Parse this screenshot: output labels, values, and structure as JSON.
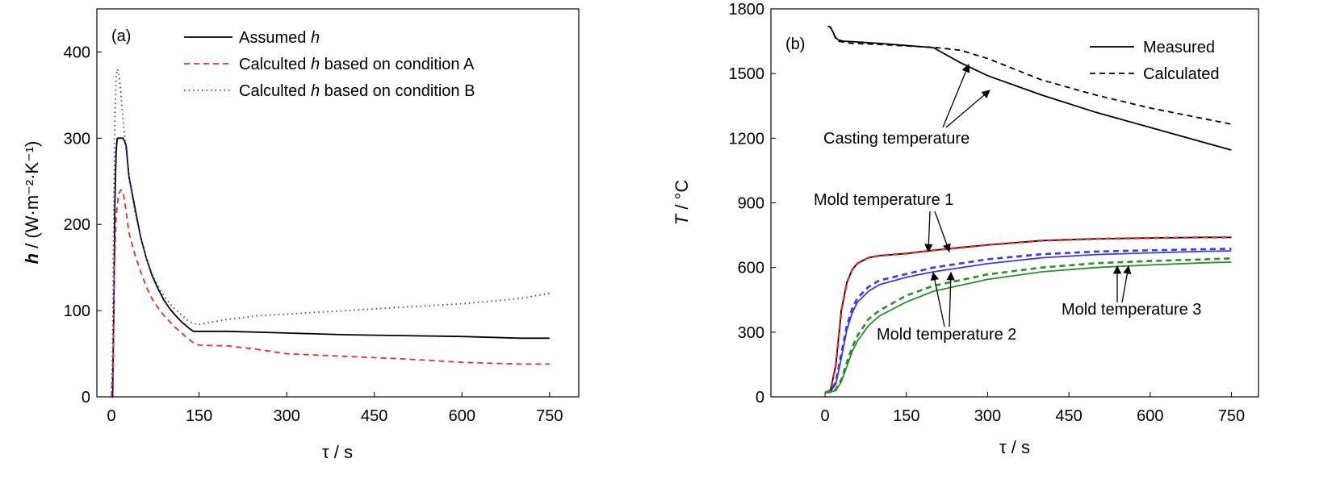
{
  "chart_data": [
    {
      "type": "line",
      "panel_label": "(a)",
      "xlabel": "τ / s",
      "ylabel_symbol": "h",
      "ylabel_unit": " / (W·m⁻²·K⁻¹)",
      "xlim": [
        -25,
        800
      ],
      "ylim": [
        0,
        450
      ],
      "xticks": [
        0,
        150,
        300,
        450,
        600,
        750
      ],
      "yticks": [
        0,
        100,
        200,
        300,
        400
      ],
      "legend_position": "top-right",
      "series": [
        {
          "legend_prefix": "Assumed ",
          "legend_symbol": "h",
          "legend_suffix": "",
          "color": "#000000",
          "style": "solid",
          "x": [
            0,
            2,
            4,
            6,
            8,
            10,
            12,
            20,
            25,
            30,
            40,
            50,
            60,
            70,
            80,
            90,
            100,
            110,
            120,
            130,
            140,
            150,
            200,
            300,
            400,
            500,
            600,
            700,
            750
          ],
          "y": [
            0,
            0,
            100,
            230,
            285,
            300,
            300,
            300,
            292,
            255,
            220,
            185,
            160,
            140,
            125,
            112,
            102,
            94,
            87,
            81,
            76,
            76,
            76,
            74,
            72,
            71,
            70,
            68,
            68
          ]
        },
        {
          "legend_prefix": "Calculted ",
          "legend_symbol": "h",
          "legend_suffix": " based on condition A",
          "color": "#e03030",
          "style": "dashed",
          "x": [
            0,
            3,
            5,
            8,
            12,
            16,
            20,
            25,
            30,
            40,
            50,
            60,
            70,
            80,
            90,
            100,
            110,
            120,
            130,
            140,
            150,
            200,
            250,
            300,
            400,
            500,
            600,
            700,
            750
          ],
          "y": [
            0,
            40,
            150,
            210,
            235,
            240,
            238,
            215,
            190,
            165,
            145,
            127,
            113,
            103,
            94,
            87,
            80,
            74,
            68,
            63,
            60,
            59,
            55,
            50,
            47,
            44,
            40,
            38,
            38
          ]
        },
        {
          "legend_prefix": "Calculted ",
          "legend_symbol": "h",
          "legend_suffix": " based on condition B",
          "color": "#3a3adf",
          "style": "dotted",
          "x": [
            0,
            2,
            4,
            6,
            8,
            10,
            12,
            15,
            20,
            25,
            30,
            40,
            50,
            60,
            70,
            80,
            90,
            100,
            110,
            120,
            130,
            140,
            150,
            200,
            250,
            300,
            400,
            500,
            600,
            700,
            750
          ],
          "y": [
            0,
            60,
            220,
            330,
            370,
            380,
            378,
            360,
            320,
            285,
            255,
            215,
            185,
            160,
            142,
            128,
            117,
            108,
            101,
            95,
            89,
            85,
            84,
            90,
            94,
            96,
            100,
            104,
            108,
            114,
            120
          ]
        }
      ]
    },
    {
      "type": "line",
      "panel_label": "(b)",
      "xlabel": "τ / s",
      "ylabel_symbol": "T",
      "ylabel_unit": " / °C",
      "xlim": [
        -100,
        800
      ],
      "ylim": [
        0,
        1800
      ],
      "xticks": [
        0,
        150,
        300,
        450,
        600,
        750
      ],
      "yticks": [
        0,
        300,
        600,
        900,
        1200,
        1500,
        1800
      ],
      "legend_position": "top-right",
      "legend": [
        {
          "label": "Measured",
          "style": "solid"
        },
        {
          "label": "Calculated",
          "style": "dashed"
        }
      ],
      "annotations": [
        "Casting temperature",
        "Mold temperature 1",
        "Mold temperature 2",
        "Mold temperature 3"
      ],
      "series": [
        {
          "group": "Casting temperature",
          "kind": "Measured",
          "color": "#000000",
          "style": "solid",
          "x": [
            5,
            10,
            15,
            20,
            25,
            35,
            50,
            100,
            150,
            200,
            250,
            300,
            400,
            500,
            600,
            700,
            750
          ],
          "y": [
            1720,
            1715,
            1690,
            1665,
            1655,
            1650,
            1648,
            1640,
            1630,
            1620,
            1550,
            1490,
            1400,
            1320,
            1250,
            1180,
            1145
          ]
        },
        {
          "group": "Casting temperature",
          "kind": "Calculated",
          "color": "#000000",
          "style": "dashed",
          "x": [
            5,
            10,
            15,
            20,
            25,
            35,
            50,
            100,
            150,
            200,
            250,
            300,
            400,
            500,
            600,
            700,
            750
          ],
          "y": [
            1720,
            1715,
            1690,
            1660,
            1650,
            1645,
            1640,
            1635,
            1628,
            1622,
            1608,
            1570,
            1470,
            1400,
            1340,
            1290,
            1265
          ]
        },
        {
          "group": "Mold temperature 1",
          "kind": "Measured",
          "color": "#000000",
          "style": "solid",
          "x": [
            0,
            10,
            20,
            30,
            40,
            50,
            60,
            80,
            100,
            150,
            200,
            300,
            400,
            500,
            600,
            700,
            750
          ],
          "y": [
            20,
            30,
            150,
            400,
            530,
            590,
            620,
            645,
            655,
            665,
            680,
            705,
            725,
            733,
            737,
            740,
            740
          ]
        },
        {
          "group": "Mold temperature 1",
          "kind": "Calculated",
          "color": "#e03030",
          "style": "dashed",
          "x": [
            0,
            10,
            20,
            30,
            40,
            50,
            60,
            80,
            100,
            150,
            200,
            300,
            400,
            500,
            600,
            700,
            750
          ],
          "y": [
            20,
            30,
            150,
            400,
            530,
            590,
            620,
            645,
            655,
            665,
            680,
            705,
            725,
            733,
            737,
            740,
            740
          ]
        },
        {
          "group": "Mold temperature 2",
          "kind": "Measured",
          "color": "#3a3adf",
          "style": "solid",
          "x": [
            0,
            10,
            20,
            30,
            40,
            50,
            60,
            80,
            100,
            150,
            200,
            300,
            400,
            500,
            600,
            700,
            750
          ],
          "y": [
            20,
            25,
            60,
            180,
            310,
            390,
            440,
            490,
            520,
            555,
            580,
            618,
            645,
            660,
            668,
            675,
            677
          ]
        },
        {
          "group": "Mold temperature 2",
          "kind": "Calculated",
          "color": "#3a3adf",
          "style": "dashed",
          "x": [
            0,
            10,
            20,
            30,
            40,
            50,
            60,
            80,
            100,
            150,
            200,
            300,
            400,
            500,
            600,
            700,
            750
          ],
          "y": [
            20,
            25,
            70,
            200,
            330,
            410,
            460,
            510,
            540,
            570,
            600,
            638,
            662,
            674,
            680,
            685,
            687
          ]
        },
        {
          "group": "Mold temperature 3",
          "kind": "Measured",
          "color": "#2e8b2e",
          "style": "solid",
          "x": [
            0,
            10,
            20,
            30,
            40,
            50,
            60,
            80,
            100,
            150,
            200,
            300,
            400,
            500,
            600,
            700,
            750
          ],
          "y": [
            20,
            22,
            30,
            70,
            140,
            210,
            260,
            330,
            375,
            440,
            490,
            545,
            580,
            600,
            612,
            622,
            625
          ]
        },
        {
          "group": "Mold temperature 3",
          "kind": "Calculated",
          "color": "#2e8b2e",
          "style": "dashed",
          "x": [
            0,
            10,
            20,
            30,
            40,
            50,
            60,
            80,
            100,
            150,
            200,
            300,
            400,
            500,
            600,
            700,
            750
          ],
          "y": [
            20,
            22,
            35,
            80,
            160,
            230,
            285,
            360,
            400,
            470,
            515,
            568,
            600,
            620,
            630,
            638,
            642
          ]
        }
      ]
    }
  ]
}
